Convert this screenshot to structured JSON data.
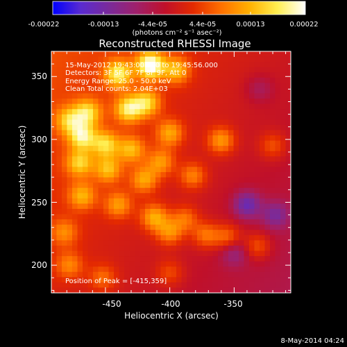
{
  "colorbar": {
    "ticks": [
      "-0.00022",
      "-0.00013",
      "-4.4e-05",
      "4.4e-05",
      "0.00013",
      "0.00022"
    ],
    "unit_label": "(photons cm⁻² s⁻¹ asec⁻²)",
    "colors": [
      "#0000ff",
      "#5a2bd0",
      "#7a2a9a",
      "#a0206a",
      "#c0102a",
      "#e42a00",
      "#ff7000",
      "#ffb000",
      "#ffee50",
      "#ffffff"
    ]
  },
  "plot": {
    "title": "Reconstructed RHESSI Image",
    "xlabel": "Heliocentric X (arcsec)",
    "ylabel": "Heliocentric Y (arcsec)",
    "info_lines": [
      "15-May-2012 19:43:00.000 to 19:45:56.000",
      "Detectors: 3F 5F 6F 7F 8F 9F, Att 0",
      "Energy Range: 25.0 - 50.0 keV",
      "Clean     Total counts: 2.04E+03"
    ],
    "peak_label": "Position of Peak = [-415,359]"
  },
  "footer": {
    "date": "8-May-2014 04:24"
  },
  "chart_data": {
    "type": "heatmap",
    "title": "Reconstructed RHESSI Image",
    "xlabel": "Heliocentric X (arcsec)",
    "ylabel": "Heliocentric Y (arcsec)",
    "xlim": [
      -492,
      -306
    ],
    "ylim": [
      178,
      370
    ],
    "xticks": [
      -450,
      -400,
      -350
    ],
    "yticks": [
      200,
      250,
      300,
      350
    ],
    "colorbar_range": [
      -0.00022,
      0.00022
    ],
    "peak": {
      "x": -415,
      "y": 359
    },
    "blobs": [
      {
        "x": -415,
        "y": 359,
        "v": 0.00022
      },
      {
        "x": -440,
        "y": 352,
        "v": 0.00016
      },
      {
        "x": -395,
        "y": 355,
        "v": 0.00012
      },
      {
        "x": -432,
        "y": 324,
        "v": 0.00016
      },
      {
        "x": -418,
        "y": 329,
        "v": 0.00014
      },
      {
        "x": -464,
        "y": 321,
        "v": 0.00014
      },
      {
        "x": -478,
        "y": 315,
        "v": 0.00012
      },
      {
        "x": -468,
        "y": 302,
        "v": 0.00016
      },
      {
        "x": -450,
        "y": 296,
        "v": 0.00014
      },
      {
        "x": -430,
        "y": 292,
        "v": 0.00012
      },
      {
        "x": -400,
        "y": 305,
        "v": 0.00011
      },
      {
        "x": -360,
        "y": 299,
        "v": 0.00011
      },
      {
        "x": -320,
        "y": 295,
        "v": 7e-05
      },
      {
        "x": -470,
        "y": 281,
        "v": 0.00013
      },
      {
        "x": -448,
        "y": 276,
        "v": 0.00012
      },
      {
        "x": -420,
        "y": 268,
        "v": 0.00011
      },
      {
        "x": -407,
        "y": 282,
        "v": 0.0001
      },
      {
        "x": -382,
        "y": 271,
        "v": 9e-05
      },
      {
        "x": -468,
        "y": 255,
        "v": 0.00011
      },
      {
        "x": -440,
        "y": 248,
        "v": 0.0001
      },
      {
        "x": -412,
        "y": 238,
        "v": 0.00012
      },
      {
        "x": -400,
        "y": 226,
        "v": 0.0001
      },
      {
        "x": -388,
        "y": 237,
        "v": 8e-05
      },
      {
        "x": -372,
        "y": 224,
        "v": 9e-05
      },
      {
        "x": -355,
        "y": 222,
        "v": 9e-05
      },
      {
        "x": -332,
        "y": 215,
        "v": 8e-05
      },
      {
        "x": -482,
        "y": 226,
        "v": 8e-05
      },
      {
        "x": -478,
        "y": 200,
        "v": 8e-05
      },
      {
        "x": -452,
        "y": 190,
        "v": 7e-05
      },
      {
        "x": -400,
        "y": 194,
        "v": 6e-05
      },
      {
        "x": -340,
        "y": 248,
        "v": -0.00012
      },
      {
        "x": -318,
        "y": 240,
        "v": -9e-05
      },
      {
        "x": -350,
        "y": 210,
        "v": -7e-05
      },
      {
        "x": -330,
        "y": 340,
        "v": -5e-05
      }
    ]
  }
}
